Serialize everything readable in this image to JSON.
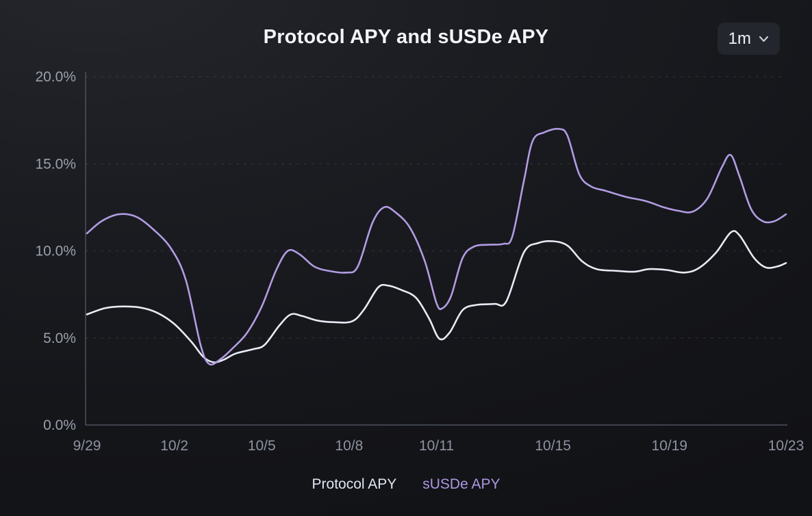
{
  "controls": {
    "range_value": "1m",
    "icons": {
      "chevron_down": "chevron-down-icon"
    }
  },
  "chart_data": {
    "type": "line",
    "title": "Protocol APY and sUSDe APY",
    "xlabel": "",
    "ylabel": "",
    "y_range": [
      0,
      20
    ],
    "x_range": [
      0,
      24
    ],
    "grid": "dashed-horizontal",
    "legend_position": "bottom-center",
    "y_ticks": [
      {
        "label": "0.0%",
        "value": 0
      },
      {
        "label": "5.0%",
        "value": 5
      },
      {
        "label": "10.0%",
        "value": 10
      },
      {
        "label": "15.0%",
        "value": 15
      },
      {
        "label": "20.0%",
        "value": 20
      }
    ],
    "x_ticks": [
      {
        "label": "9/29",
        "day": 0
      },
      {
        "label": "10/2",
        "day": 3
      },
      {
        "label": "10/5",
        "day": 6
      },
      {
        "label": "10/8",
        "day": 9
      },
      {
        "label": "10/11",
        "day": 12
      },
      {
        "label": "10/15",
        "day": 16
      },
      {
        "label": "10/19",
        "day": 20
      },
      {
        "label": "10/23",
        "day": 24
      }
    ],
    "series": [
      {
        "name": "Protocol APY",
        "color": "#e8ebf4",
        "points": [
          [
            0,
            6.35
          ],
          [
            0.6,
            6.7
          ],
          [
            1.1,
            6.8
          ],
          [
            1.8,
            6.75
          ],
          [
            2.4,
            6.45
          ],
          [
            3.0,
            5.8
          ],
          [
            3.6,
            4.75
          ],
          [
            4.0,
            3.9
          ],
          [
            4.35,
            3.6
          ],
          [
            4.7,
            3.75
          ],
          [
            5.1,
            4.1
          ],
          [
            5.7,
            4.35
          ],
          [
            6.1,
            4.6
          ],
          [
            6.6,
            5.7
          ],
          [
            7.0,
            6.35
          ],
          [
            7.4,
            6.25
          ],
          [
            7.9,
            6.0
          ],
          [
            8.5,
            5.9
          ],
          [
            9.1,
            5.95
          ],
          [
            9.5,
            6.6
          ],
          [
            10.0,
            7.9
          ],
          [
            10.35,
            8.0
          ],
          [
            10.8,
            7.75
          ],
          [
            11.3,
            7.3
          ],
          [
            11.75,
            6.1
          ],
          [
            12.1,
            4.95
          ],
          [
            12.45,
            5.3
          ],
          [
            12.9,
            6.6
          ],
          [
            13.4,
            6.9
          ],
          [
            14.0,
            6.95
          ],
          [
            14.4,
            7.1
          ],
          [
            15.0,
            9.9
          ],
          [
            15.5,
            10.45
          ],
          [
            16.0,
            10.55
          ],
          [
            16.5,
            10.3
          ],
          [
            17.0,
            9.4
          ],
          [
            17.5,
            8.95
          ],
          [
            18.2,
            8.85
          ],
          [
            18.8,
            8.8
          ],
          [
            19.3,
            8.95
          ],
          [
            19.9,
            8.9
          ],
          [
            20.5,
            8.75
          ],
          [
            21.0,
            9.0
          ],
          [
            21.6,
            9.9
          ],
          [
            22.1,
            11.05
          ],
          [
            22.4,
            10.9
          ],
          [
            22.9,
            9.6
          ],
          [
            23.3,
            9.05
          ],
          [
            23.7,
            9.1
          ],
          [
            24,
            9.3
          ]
        ]
      },
      {
        "name": "sUSDe APY",
        "color": "#b29ce2",
        "points": [
          [
            0,
            11.0
          ],
          [
            0.5,
            11.7
          ],
          [
            1.1,
            12.1
          ],
          [
            1.7,
            11.95
          ],
          [
            2.3,
            11.2
          ],
          [
            2.9,
            10.1
          ],
          [
            3.4,
            8.3
          ],
          [
            3.9,
            4.6
          ],
          [
            4.2,
            3.5
          ],
          [
            4.6,
            3.8
          ],
          [
            5.0,
            4.4
          ],
          [
            5.5,
            5.3
          ],
          [
            6.0,
            6.8
          ],
          [
            6.5,
            8.9
          ],
          [
            6.9,
            10.0
          ],
          [
            7.3,
            9.8
          ],
          [
            7.8,
            9.1
          ],
          [
            8.3,
            8.85
          ],
          [
            8.9,
            8.75
          ],
          [
            9.3,
            9.1
          ],
          [
            9.8,
            11.6
          ],
          [
            10.2,
            12.5
          ],
          [
            10.6,
            12.2
          ],
          [
            11.1,
            11.3
          ],
          [
            11.6,
            9.4
          ],
          [
            12.0,
            7.0
          ],
          [
            12.2,
            6.7
          ],
          [
            12.5,
            7.4
          ],
          [
            12.9,
            9.6
          ],
          [
            13.3,
            10.25
          ],
          [
            13.8,
            10.35
          ],
          [
            14.3,
            10.4
          ],
          [
            14.6,
            10.8
          ],
          [
            15.0,
            14.0
          ],
          [
            15.3,
            16.3
          ],
          [
            15.7,
            16.8
          ],
          [
            16.2,
            17.0
          ],
          [
            16.5,
            16.6
          ],
          [
            16.9,
            14.4
          ],
          [
            17.3,
            13.7
          ],
          [
            17.8,
            13.45
          ],
          [
            18.5,
            13.1
          ],
          [
            19.2,
            12.85
          ],
          [
            19.8,
            12.5
          ],
          [
            20.3,
            12.3
          ],
          [
            20.8,
            12.25
          ],
          [
            21.3,
            13.0
          ],
          [
            21.8,
            14.8
          ],
          [
            22.1,
            15.5
          ],
          [
            22.4,
            14.3
          ],
          [
            22.8,
            12.4
          ],
          [
            23.2,
            11.7
          ],
          [
            23.6,
            11.7
          ],
          [
            24,
            12.1
          ]
        ]
      }
    ]
  }
}
